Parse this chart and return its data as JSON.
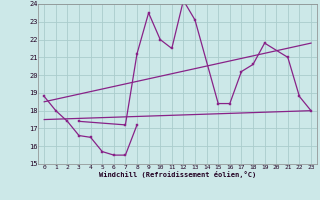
{
  "background_color": "#cce8e8",
  "grid_color": "#aacccc",
  "line_color": "#882288",
  "xlim": [
    -0.5,
    23.5
  ],
  "ylim": [
    15,
    24
  ],
  "xticks": [
    0,
    1,
    2,
    3,
    4,
    5,
    6,
    7,
    8,
    9,
    10,
    11,
    12,
    13,
    14,
    15,
    16,
    17,
    18,
    19,
    20,
    21,
    22,
    23
  ],
  "yticks": [
    15,
    16,
    17,
    18,
    19,
    20,
    21,
    22,
    23,
    24
  ],
  "xlabel": "Windchill (Refroidissement éolien,°C)",
  "series_lower": {
    "x": [
      0,
      1,
      2,
      3,
      4,
      5,
      6,
      7,
      8
    ],
    "y": [
      18.8,
      18.0,
      17.4,
      16.6,
      16.5,
      15.7,
      15.5,
      15.5,
      17.2
    ]
  },
  "series_upper": {
    "x": [
      3,
      7,
      8,
      9,
      10,
      11,
      12,
      13,
      15,
      16,
      17,
      18,
      19,
      21,
      22,
      23
    ],
    "y": [
      17.4,
      17.2,
      21.2,
      23.5,
      22.0,
      21.5,
      24.2,
      23.1,
      18.4,
      18.4,
      20.2,
      20.6,
      21.8,
      21.0,
      18.8,
      18.0
    ]
  },
  "trend1": {
    "x": [
      0,
      23
    ],
    "y": [
      17.5,
      18.0
    ]
  },
  "trend2": {
    "x": [
      0,
      23
    ],
    "y": [
      18.5,
      21.8
    ]
  }
}
